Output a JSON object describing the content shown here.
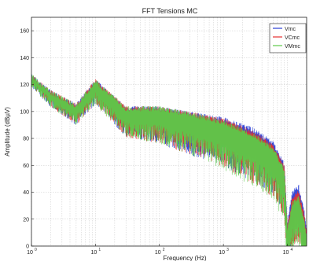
{
  "chart_data": {
    "type": "line",
    "title": "FFT Tensions MC",
    "xlabel": "Frequency (Hz)",
    "ylabel": "Amplitude (dBµV)",
    "x_scale": "log",
    "xlim": [
      1,
      20000
    ],
    "ylim": [
      0,
      170
    ],
    "x_ticks": [
      1,
      10,
      100,
      1000,
      10000
    ],
    "x_tick_labels": [
      "10",
      "10",
      "10",
      "10",
      "10"
    ],
    "x_tick_exponents": [
      "0",
      "1",
      "2",
      "3",
      "4"
    ],
    "y_ticks": [
      0,
      20,
      40,
      60,
      80,
      100,
      120,
      140,
      160
    ],
    "y_tick_labels": [
      "0",
      "20",
      "40",
      "60",
      "80",
      "100",
      "120",
      "140",
      "160"
    ],
    "grid": true,
    "legend_position": "top-right",
    "series": [
      {
        "name": "Vmc",
        "color": "#2b3fd6",
        "x": [
          1,
          2,
          5,
          10,
          30,
          100,
          300,
          1000,
          3000,
          6000,
          9000,
          10000,
          12000,
          15000,
          18000,
          20000
        ],
        "y": [
          128,
          116,
          106,
          124,
          104,
          104,
          100,
          96,
          88,
          78,
          62,
          18,
          42,
          46,
          30,
          14
        ]
      },
      {
        "name": "VCmc",
        "color": "#e53030",
        "x": [
          1,
          2,
          5,
          10,
          30,
          100,
          300,
          1000,
          3000,
          6000,
          9000,
          10000,
          12000,
          15000,
          18000,
          20000
        ],
        "y": [
          128,
          116,
          106,
          124,
          104,
          104,
          100,
          95,
          86,
          76,
          60,
          16,
          38,
          42,
          26,
          12
        ]
      },
      {
        "name": "VMmc",
        "color": "#5cc94a",
        "x": [
          1,
          2,
          5,
          10,
          30,
          100,
          300,
          1000,
          3000,
          6000,
          9000,
          10000,
          12000,
          15000,
          18000,
          20000
        ],
        "y": [
          128,
          116,
          106,
          124,
          104,
          104,
          100,
          94,
          84,
          74,
          58,
          14,
          34,
          38,
          22,
          10
        ]
      }
    ]
  }
}
